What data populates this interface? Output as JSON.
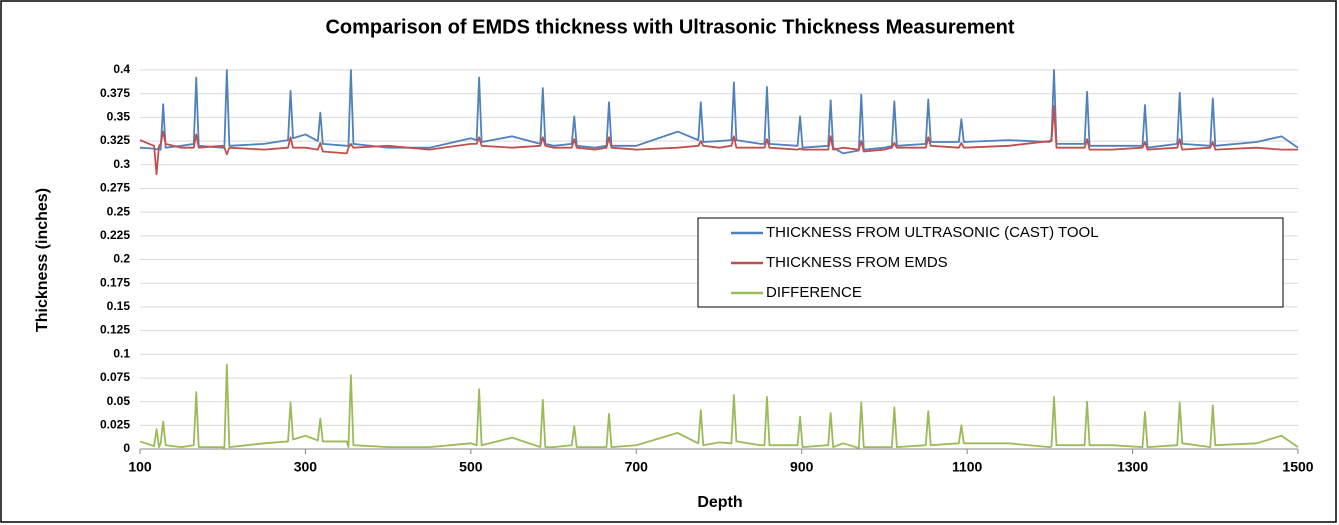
{
  "chart_data": {
    "type": "line",
    "title": "Comparison of EMDS thickness with Ultrasonic Thickness Measurement",
    "x_label": "Depth",
    "y_label": "Thickness (inches)",
    "xlim": [
      100,
      1500
    ],
    "xticks": [
      100,
      300,
      500,
      700,
      900,
      1100,
      1300,
      1500
    ],
    "ylim": [
      0,
      0.4
    ],
    "yticks": [
      0,
      0.025,
      0.05,
      0.075,
      0.1,
      0.125,
      0.15,
      0.175,
      0.2,
      0.225,
      0.25,
      0.275,
      0.3,
      0.325,
      0.35,
      0.375,
      0.4
    ],
    "grid": true,
    "legend": "right",
    "x": [
      100,
      117,
      120,
      123,
      125,
      128,
      131,
      150,
      165,
      168,
      171,
      200,
      202,
      205,
      208,
      250,
      279,
      282,
      285,
      300,
      315,
      318,
      321,
      350,
      352,
      355,
      358,
      400,
      450,
      500,
      507,
      510,
      513,
      550,
      584,
      587,
      590,
      600,
      622,
      625,
      628,
      650,
      664,
      667,
      670,
      700,
      750,
      775,
      778,
      781,
      800,
      815,
      818,
      821,
      850,
      855,
      858,
      861,
      895,
      898,
      901,
      932,
      935,
      938,
      950,
      969,
      972,
      975,
      1000,
      1009,
      1012,
      1015,
      1050,
      1053,
      1056,
      1090,
      1093,
      1096,
      1150,
      1200,
      1202,
      1205,
      1208,
      1242,
      1245,
      1248,
      1275,
      1312,
      1315,
      1318,
      1354,
      1357,
      1360,
      1394,
      1397,
      1400,
      1450,
      1480,
      1500
    ],
    "series": [
      {
        "name": "THICKNESS FROM ULTRASONIC (CAST) TOOL",
        "color": "#4f81bd",
        "values": [
          0.318,
          0.317,
          0.316,
          0.318,
          0.316,
          0.364,
          0.318,
          0.32,
          0.322,
          0.392,
          0.32,
          0.318,
          0.318,
          0.4,
          0.32,
          0.322,
          0.326,
          0.378,
          0.328,
          0.332,
          0.325,
          0.355,
          0.322,
          0.32,
          0.32,
          0.4,
          0.322,
          0.318,
          0.318,
          0.328,
          0.326,
          0.392,
          0.324,
          0.33,
          0.322,
          0.381,
          0.322,
          0.32,
          0.322,
          0.351,
          0.32,
          0.318,
          0.32,
          0.366,
          0.32,
          0.32,
          0.335,
          0.326,
          0.366,
          0.324,
          0.325,
          0.326,
          0.387,
          0.326,
          0.322,
          0.322,
          0.382,
          0.322,
          0.32,
          0.351,
          0.318,
          0.32,
          0.368,
          0.318,
          0.312,
          0.315,
          0.374,
          0.316,
          0.318,
          0.32,
          0.367,
          0.32,
          0.322,
          0.369,
          0.324,
          0.324,
          0.348,
          0.324,
          0.326,
          0.324,
          0.328,
          0.4,
          0.322,
          0.322,
          0.377,
          0.32,
          0.32,
          0.32,
          0.363,
          0.318,
          0.322,
          0.376,
          0.322,
          0.32,
          0.37,
          0.32,
          0.324,
          0.33,
          0.318
        ]
      },
      {
        "name": "THICKNESS FROM EMDS",
        "color": "#c0504d",
        "values": [
          0.326,
          0.32,
          0.29,
          0.32,
          0.322,
          0.335,
          0.322,
          0.318,
          0.318,
          0.332,
          0.318,
          0.32,
          0.318,
          0.311,
          0.318,
          0.316,
          0.318,
          0.329,
          0.318,
          0.318,
          0.316,
          0.323,
          0.314,
          0.312,
          0.318,
          0.322,
          0.318,
          0.32,
          0.316,
          0.322,
          0.322,
          0.329,
          0.32,
          0.318,
          0.32,
          0.329,
          0.32,
          0.318,
          0.318,
          0.327,
          0.318,
          0.316,
          0.318,
          0.329,
          0.318,
          0.316,
          0.318,
          0.32,
          0.325,
          0.32,
          0.318,
          0.32,
          0.33,
          0.318,
          0.318,
          0.318,
          0.327,
          0.318,
          0.316,
          0.317,
          0.316,
          0.316,
          0.33,
          0.316,
          0.318,
          0.316,
          0.325,
          0.314,
          0.316,
          0.318,
          0.323,
          0.318,
          0.318,
          0.329,
          0.32,
          0.318,
          0.323,
          0.318,
          0.32,
          0.325,
          0.325,
          0.362,
          0.318,
          0.318,
          0.327,
          0.316,
          0.316,
          0.318,
          0.324,
          0.316,
          0.318,
          0.327,
          0.316,
          0.318,
          0.324,
          0.316,
          0.318,
          0.316,
          0.316
        ]
      },
      {
        "name": "DIFFERENCE",
        "color": "#9bbb59",
        "values": [
          0.008,
          0.003,
          0.021,
          0.002,
          0.006,
          0.029,
          0.004,
          0.002,
          0.004,
          0.06,
          0.002,
          0.002,
          0,
          0.089,
          0.002,
          0.006,
          0.008,
          0.049,
          0.01,
          0.014,
          0.009,
          0.032,
          0.008,
          0.008,
          0.002,
          0.078,
          0.004,
          0.002,
          0.002,
          0.006,
          0.004,
          0.063,
          0.004,
          0.012,
          0.002,
          0.052,
          0.002,
          0.002,
          0.004,
          0.024,
          0.002,
          0.002,
          0.002,
          0.037,
          0.002,
          0.004,
          0.017,
          0.006,
          0.041,
          0.004,
          0.007,
          0.006,
          0.057,
          0.008,
          0.004,
          0.004,
          0.055,
          0.004,
          0.004,
          0.034,
          0.002,
          0.004,
          0.038,
          0.002,
          0.006,
          0.001,
          0.049,
          0.002,
          0.002,
          0.002,
          0.044,
          0.002,
          0.004,
          0.04,
          0.004,
          0.006,
          0.025,
          0.006,
          0.006,
          0.002,
          0.003,
          0.055,
          0.004,
          0.004,
          0.05,
          0.004,
          0.004,
          0.002,
          0.039,
          0.002,
          0.004,
          0.049,
          0.006,
          0.002,
          0.046,
          0.004,
          0.006,
          0.014,
          0.002
        ]
      }
    ]
  }
}
